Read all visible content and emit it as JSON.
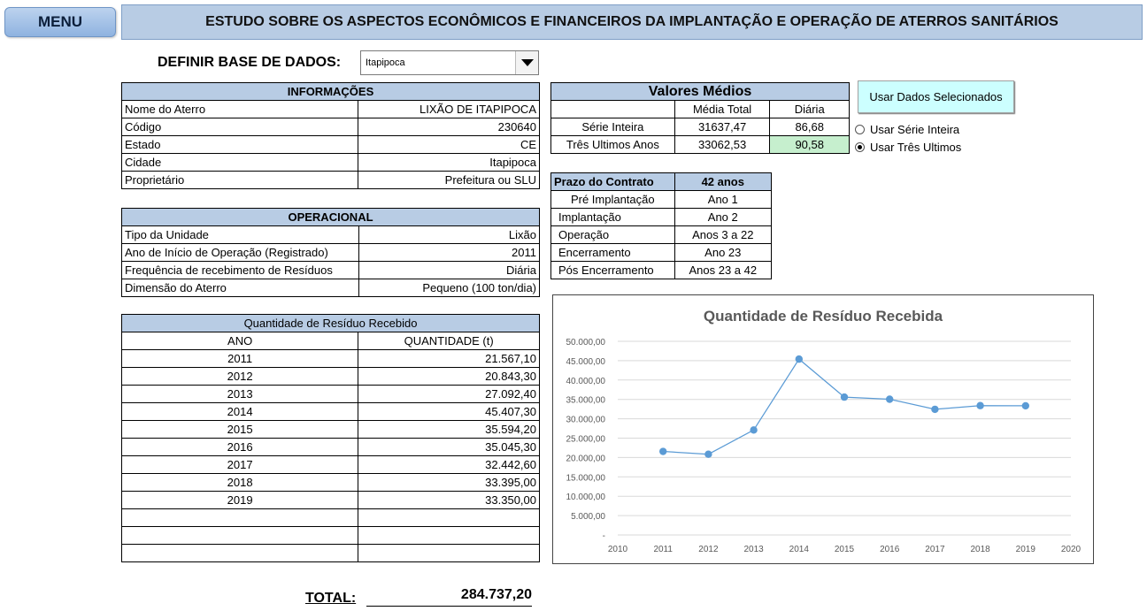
{
  "menu_label": "MENU",
  "page_title": "ESTUDO SOBRE OS ASPECTOS ECONÔMICOS E FINANCEIROS DA IMPLANTAÇÃO E OPERAÇÃO DE ATERROS SANITÁRIOS",
  "database": {
    "label": "DEFINIR BASE DE DADOS:",
    "selected": "Itapipoca"
  },
  "info": {
    "header": "INFORMAÇÕES",
    "rows": [
      {
        "label": "Nome do Aterro",
        "value": "LIXÃO DE ITAPIPOCA"
      },
      {
        "label": "Código",
        "value": "230640"
      },
      {
        "label": "Estado",
        "value": "CE"
      },
      {
        "label": "Cidade",
        "value": "Itapipoca"
      },
      {
        "label": "Proprietário",
        "value": "Prefeitura ou SLU"
      }
    ]
  },
  "operational": {
    "header": "OPERACIONAL",
    "rows": [
      {
        "label": "Tipo da Unidade",
        "value": "Lixão"
      },
      {
        "label": "Ano de Início de Operação (Registrado)",
        "value": "2011"
      },
      {
        "label": "Frequência de recebimento de Resíduos",
        "value": "Diária"
      },
      {
        "label": "Dimensão do Aterro",
        "value": "Pequeno (100 ton/dia)"
      }
    ]
  },
  "residue": {
    "header": "Quantidade de Resíduo Recebido",
    "col_year": "ANO",
    "col_qty": "QUANTIDADE (t)",
    "rows": [
      {
        "year": "2011",
        "qty": "21.567,10"
      },
      {
        "year": "2012",
        "qty": "20.843,30"
      },
      {
        "year": "2013",
        "qty": "27.092,40"
      },
      {
        "year": "2014",
        "qty": "45.407,30"
      },
      {
        "year": "2015",
        "qty": "35.594,20"
      },
      {
        "year": "2016",
        "qty": "35.045,30"
      },
      {
        "year": "2017",
        "qty": "32.442,60"
      },
      {
        "year": "2018",
        "qty": "33.395,00"
      },
      {
        "year": "2019",
        "qty": "33.350,00"
      },
      {
        "year": "",
        "qty": ""
      },
      {
        "year": "",
        "qty": ""
      },
      {
        "year": "",
        "qty": ""
      }
    ]
  },
  "total": {
    "label": "TOTAL:",
    "value": "284.737,20"
  },
  "averages": {
    "title": "Valores Médios",
    "col_total": "Média Total",
    "col_daily": "Diária",
    "rows": [
      {
        "label": "Série Inteira",
        "total": "31637,47",
        "daily": "86,68"
      },
      {
        "label": "Três Ultimos Anos",
        "total": "33062,53",
        "daily": "90,58"
      }
    ]
  },
  "contract": {
    "label": "Prazo do Contrato",
    "value": "42 anos",
    "rows": [
      {
        "phase": "Pré Implantação",
        "period": "Ano 1"
      },
      {
        "phase": "Implantação",
        "period": "Ano 2"
      },
      {
        "phase": "Operação",
        "period": "Anos 3 a 22"
      },
      {
        "phase": "Encerramento",
        "period": "Ano 23"
      },
      {
        "phase": "Pós Encerramento",
        "period": "Anos 23 a 42"
      }
    ]
  },
  "use_button_label": "Usar Dados Selecionados",
  "options": [
    {
      "label": "Usar Série Inteira",
      "selected": false
    },
    {
      "label": "Usar Três Ultimos",
      "selected": true
    }
  ],
  "colors": {
    "header_fill": "#b8cce4",
    "highlight": "#c6efce",
    "series": "#5b9bd5",
    "button": "#ccffff"
  },
  "chart_data": {
    "type": "line",
    "title": "Quantidade de Resíduo Recebida",
    "xlim": [
      2010,
      2020
    ],
    "x_ticks": [
      "2010",
      "2011",
      "2012",
      "2013",
      "2014",
      "2015",
      "2016",
      "2017",
      "2018",
      "2019",
      "2020"
    ],
    "ylim": [
      0,
      50000
    ],
    "y_ticks": [
      "-",
      "5.000,00",
      "10.000,00",
      "15.000,00",
      "20.000,00",
      "25.000,00",
      "30.000,00",
      "35.000,00",
      "40.000,00",
      "45.000,00",
      "50.000,00"
    ],
    "grid": true,
    "series": [
      {
        "x": [
          2011,
          2012,
          2013,
          2014,
          2015,
          2016,
          2017,
          2018,
          2019
        ],
        "values": [
          21567.1,
          20843.3,
          27092.4,
          45407.3,
          35594.2,
          35045.3,
          32442.6,
          33395.0,
          33350.0
        ]
      }
    ]
  }
}
